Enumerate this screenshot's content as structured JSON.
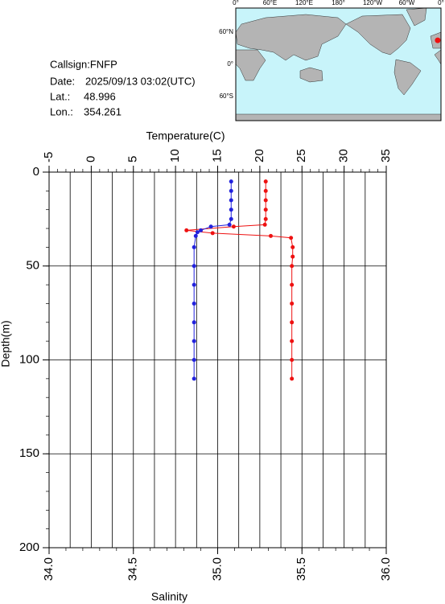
{
  "info": {
    "callsign": "Callsign:FNFP",
    "date_label": "Date:",
    "date": "2025/09/13 03:02(UTC)",
    "lat_label": "Lat.:",
    "lat": 48.996,
    "lon_label": "Lon.:",
    "lon": 354.261
  },
  "map": {
    "lon_labels": [
      "0°",
      "60°E",
      "120°E",
      "180°",
      "120°W",
      "60°W",
      "0°"
    ],
    "lat_labels": [
      "60°N",
      "0°",
      "60°S"
    ]
  },
  "chart_data": {
    "type": "profile",
    "x2label": "Temperature(C)",
    "xlabel": "Salinity",
    "ylabel": "Depth(m)",
    "x2lim": [
      -5,
      35
    ],
    "x2ticks": [
      -5,
      0,
      5,
      10,
      15,
      20,
      25,
      30,
      35
    ],
    "x2grid": [
      -2.5,
      0,
      2.5,
      5,
      7.5,
      10,
      12.5,
      15,
      17.5,
      20,
      22.5,
      25,
      27.5,
      30,
      32.5
    ],
    "xlim": [
      34,
      36
    ],
    "xticks": [
      {
        "value": 34,
        "label": "34.0"
      },
      34.5,
      {
        "value": 35,
        "label": "35.0"
      },
      35.5,
      {
        "value": 36,
        "label": "36.0"
      }
    ],
    "ylim": [
      0,
      200
    ],
    "y_inverted": true,
    "yticks": [
      0,
      50,
      100,
      150,
      200
    ],
    "ygrid": [
      50,
      100,
      150
    ],
    "series": [
      {
        "axis": "x2",
        "color": "#ee1111",
        "depths": [
          5,
          10,
          15,
          20,
          25,
          28,
          29,
          31,
          32.5,
          34,
          35,
          40,
          45,
          50,
          60,
          70,
          80,
          90,
          100,
          110
        ],
        "values": [
          20.7,
          20.7,
          20.7,
          20.7,
          20.7,
          20.6,
          16.9,
          11.3,
          14.4,
          21.3,
          23.7,
          23.9,
          23.9,
          23.8,
          23.8,
          23.8,
          23.8,
          23.8,
          23.8,
          23.8
        ]
      },
      {
        "axis": "x",
        "color": "#2222dd",
        "depths": [
          5,
          10,
          15,
          20,
          25,
          28,
          29,
          31,
          32,
          34,
          40,
          50,
          60,
          70,
          80,
          90,
          100,
          110
        ],
        "values": [
          35.08,
          35.08,
          35.08,
          35.08,
          35.08,
          35.07,
          34.96,
          34.9,
          34.88,
          34.87,
          34.86,
          34.86,
          34.86,
          34.86,
          34.86,
          34.86,
          34.86,
          34.86
        ]
      }
    ]
  }
}
